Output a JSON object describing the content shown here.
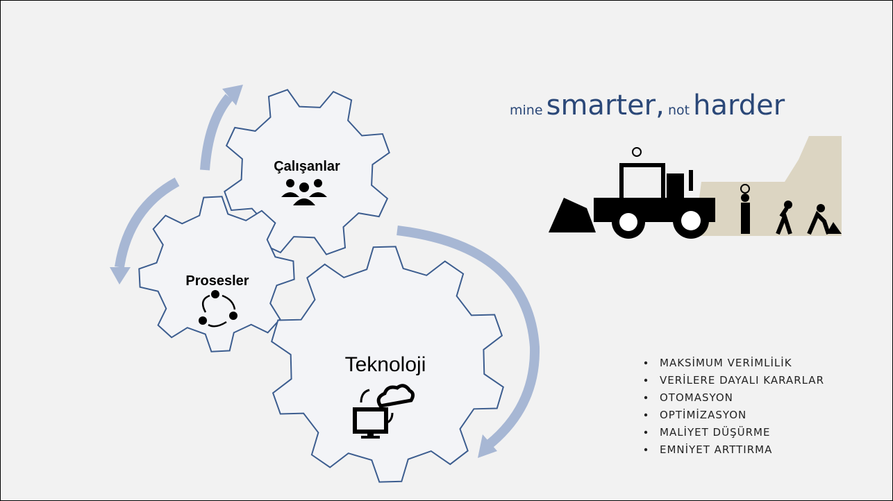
{
  "slogan": {
    "parts": [
      "mine",
      "smarter,",
      "not",
      "harder"
    ]
  },
  "gears": [
    {
      "label": "Çalışanlar"
    },
    {
      "label": "Prosesler"
    },
    {
      "label": "Teknoloji"
    }
  ],
  "bullets": [
    "MAKSİMUM VERİMLİLİK",
    "VERİLERE DAYALI KARARLAR",
    "OTOMASYON",
    "OPTİMİZASYON",
    "MALİYET DÜŞÜRME",
    "EMNİYET ARTTIRMA"
  ]
}
